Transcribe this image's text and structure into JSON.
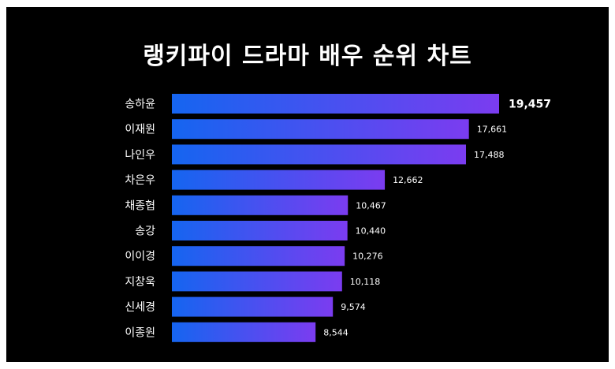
{
  "chart_data": {
    "type": "bar",
    "orientation": "horizontal",
    "title": "랭키파이 드라마 배우 순위 차트",
    "categories": [
      "송하윤",
      "이재원",
      "나인우",
      "차은우",
      "채종협",
      "송강",
      "이이경",
      "지창욱",
      "신세경",
      "이종원"
    ],
    "values": [
      19457,
      17661,
      17488,
      12662,
      10467,
      10440,
      10276,
      10118,
      9574,
      8544
    ],
    "value_labels": [
      "19,457",
      "17,661",
      "17,488",
      "12,662",
      "10,467",
      "10,440",
      "10,276",
      "10,118",
      "9,574",
      "8,544"
    ],
    "highlight_index": 0,
    "xlim": [
      0,
      19457
    ],
    "grid": false,
    "legend": "none",
    "colors": {
      "background": "#000000",
      "bar_start": "#1565f0",
      "bar_end": "#7b3cf0",
      "text": "#ffffff"
    }
  }
}
